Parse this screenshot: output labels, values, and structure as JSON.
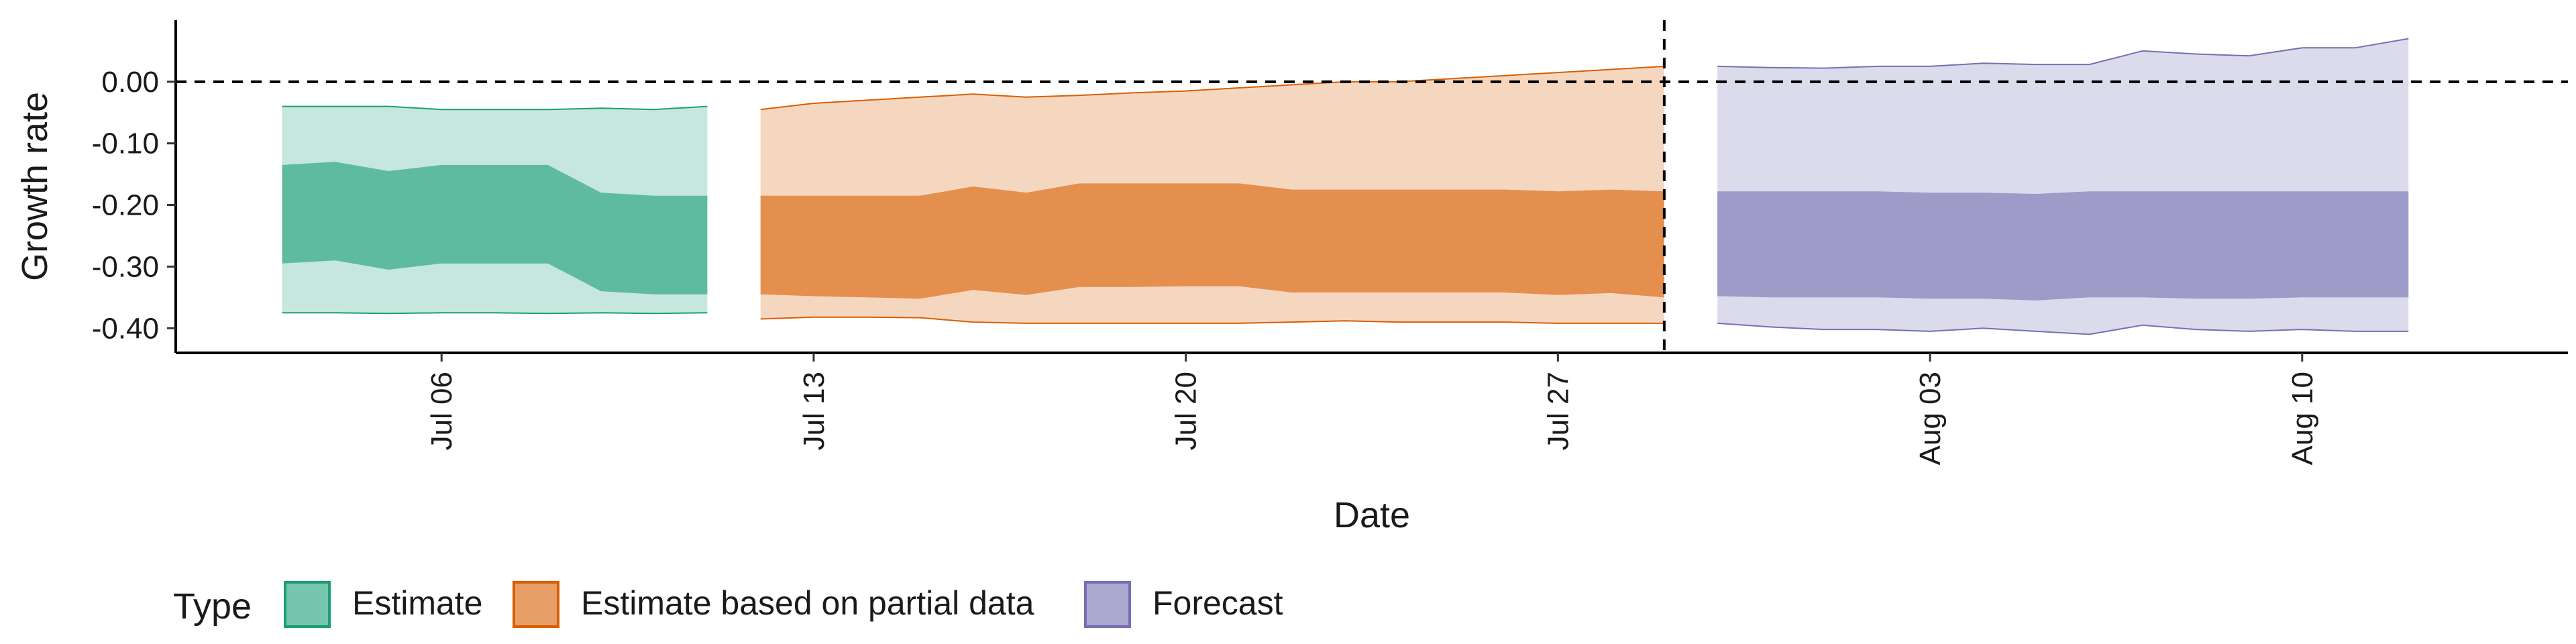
{
  "chart_data": {
    "type": "area",
    "xlabel": "Date",
    "ylabel": "Growth rate",
    "x_axis_type": "date",
    "xlim": [
      "2020-07-01",
      "2020-08-15"
    ],
    "ylim": [
      -0.44,
      0.1
    ],
    "yticks": [
      0.0,
      -0.1,
      -0.2,
      -0.3,
      -0.4
    ],
    "ytick_labels": [
      "0.00",
      "-0.10",
      "-0.20",
      "-0.30",
      "-0.40"
    ],
    "xticks": [
      "2020-07-06",
      "2020-07-13",
      "2020-07-20",
      "2020-07-27",
      "2020-08-03",
      "2020-08-10"
    ],
    "xtick_labels": [
      "Jul 06",
      "Jul 13",
      "Jul 20",
      "Jul 27",
      "Aug 03",
      "Aug 10"
    ],
    "hline": 0.0,
    "vline": "2020-07-29",
    "grid": false,
    "legend": {
      "title": "Type",
      "position": "bottom-left",
      "entries": [
        "Estimate",
        "Estimate based on partial data",
        "Forecast"
      ]
    },
    "series": [
      {
        "name": "Estimate",
        "color": "#1b9e77",
        "x": [
          "2020-07-03",
          "2020-07-04",
          "2020-07-05",
          "2020-07-06",
          "2020-07-07",
          "2020-07-08",
          "2020-07-09",
          "2020-07-10",
          "2020-07-11"
        ],
        "outer_upper": [
          -0.04,
          -0.04,
          -0.04,
          -0.045,
          -0.045,
          -0.045,
          -0.043,
          -0.045,
          -0.04
        ],
        "inner_upper": [
          -0.135,
          -0.13,
          -0.145,
          -0.135,
          -0.135,
          -0.135,
          -0.18,
          -0.185,
          -0.185
        ],
        "inner_lower": [
          -0.295,
          -0.29,
          -0.305,
          -0.295,
          -0.295,
          -0.295,
          -0.34,
          -0.345,
          -0.345
        ],
        "outer_lower": [
          -0.375,
          -0.375,
          -0.376,
          -0.375,
          -0.375,
          -0.376,
          -0.375,
          -0.376,
          -0.375
        ]
      },
      {
        "name": "Estimate based on partial data",
        "color": "#d95f02",
        "x": [
          "2020-07-12",
          "2020-07-13",
          "2020-07-14",
          "2020-07-15",
          "2020-07-16",
          "2020-07-17",
          "2020-07-18",
          "2020-07-19",
          "2020-07-20",
          "2020-07-21",
          "2020-07-22",
          "2020-07-23",
          "2020-07-24",
          "2020-07-25",
          "2020-07-26",
          "2020-07-27",
          "2020-07-28",
          "2020-07-29"
        ],
        "outer_upper": [
          -0.045,
          -0.035,
          -0.03,
          -0.025,
          -0.02,
          -0.025,
          -0.022,
          -0.018,
          -0.015,
          -0.01,
          -0.005,
          0.0,
          0.0,
          0.005,
          0.01,
          0.015,
          0.02,
          0.025
        ],
        "inner_upper": [
          -0.185,
          -0.185,
          -0.185,
          -0.185,
          -0.17,
          -0.18,
          -0.165,
          -0.165,
          -0.165,
          -0.165,
          -0.175,
          -0.175,
          -0.175,
          -0.175,
          -0.175,
          -0.178,
          -0.175,
          -0.178
        ],
        "inner_lower": [
          -0.345,
          -0.348,
          -0.35,
          -0.352,
          -0.338,
          -0.346,
          -0.333,
          -0.333,
          -0.332,
          -0.332,
          -0.342,
          -0.342,
          -0.342,
          -0.342,
          -0.342,
          -0.346,
          -0.343,
          -0.35
        ],
        "outer_lower": [
          -0.385,
          -0.382,
          -0.382,
          -0.383,
          -0.39,
          -0.392,
          -0.392,
          -0.392,
          -0.392,
          -0.392,
          -0.39,
          -0.388,
          -0.39,
          -0.39,
          -0.39,
          -0.392,
          -0.392,
          -0.392
        ]
      },
      {
        "name": "Forecast",
        "color": "#7570b3",
        "x": [
          "2020-07-30",
          "2020-07-31",
          "2020-08-01",
          "2020-08-02",
          "2020-08-03",
          "2020-08-04",
          "2020-08-05",
          "2020-08-06",
          "2020-08-07",
          "2020-08-08",
          "2020-08-09",
          "2020-08-10",
          "2020-08-11",
          "2020-08-12"
        ],
        "outer_upper": [
          0.025,
          0.023,
          0.022,
          0.025,
          0.025,
          0.03,
          0.028,
          0.028,
          0.05,
          0.045,
          0.042,
          0.055,
          0.055,
          0.07
        ],
        "inner_upper": [
          -0.178,
          -0.178,
          -0.178,
          -0.178,
          -0.18,
          -0.18,
          -0.182,
          -0.178,
          -0.178,
          -0.178,
          -0.178,
          -0.178,
          -0.178,
          -0.178
        ],
        "inner_lower": [
          -0.348,
          -0.35,
          -0.35,
          -0.35,
          -0.352,
          -0.352,
          -0.355,
          -0.35,
          -0.35,
          -0.352,
          -0.352,
          -0.35,
          -0.35,
          -0.35
        ],
        "outer_lower": [
          -0.392,
          -0.398,
          -0.402,
          -0.402,
          -0.405,
          -0.4,
          -0.405,
          -0.41,
          -0.395,
          -0.402,
          -0.405,
          -0.402,
          -0.405,
          -0.405
        ]
      }
    ]
  }
}
